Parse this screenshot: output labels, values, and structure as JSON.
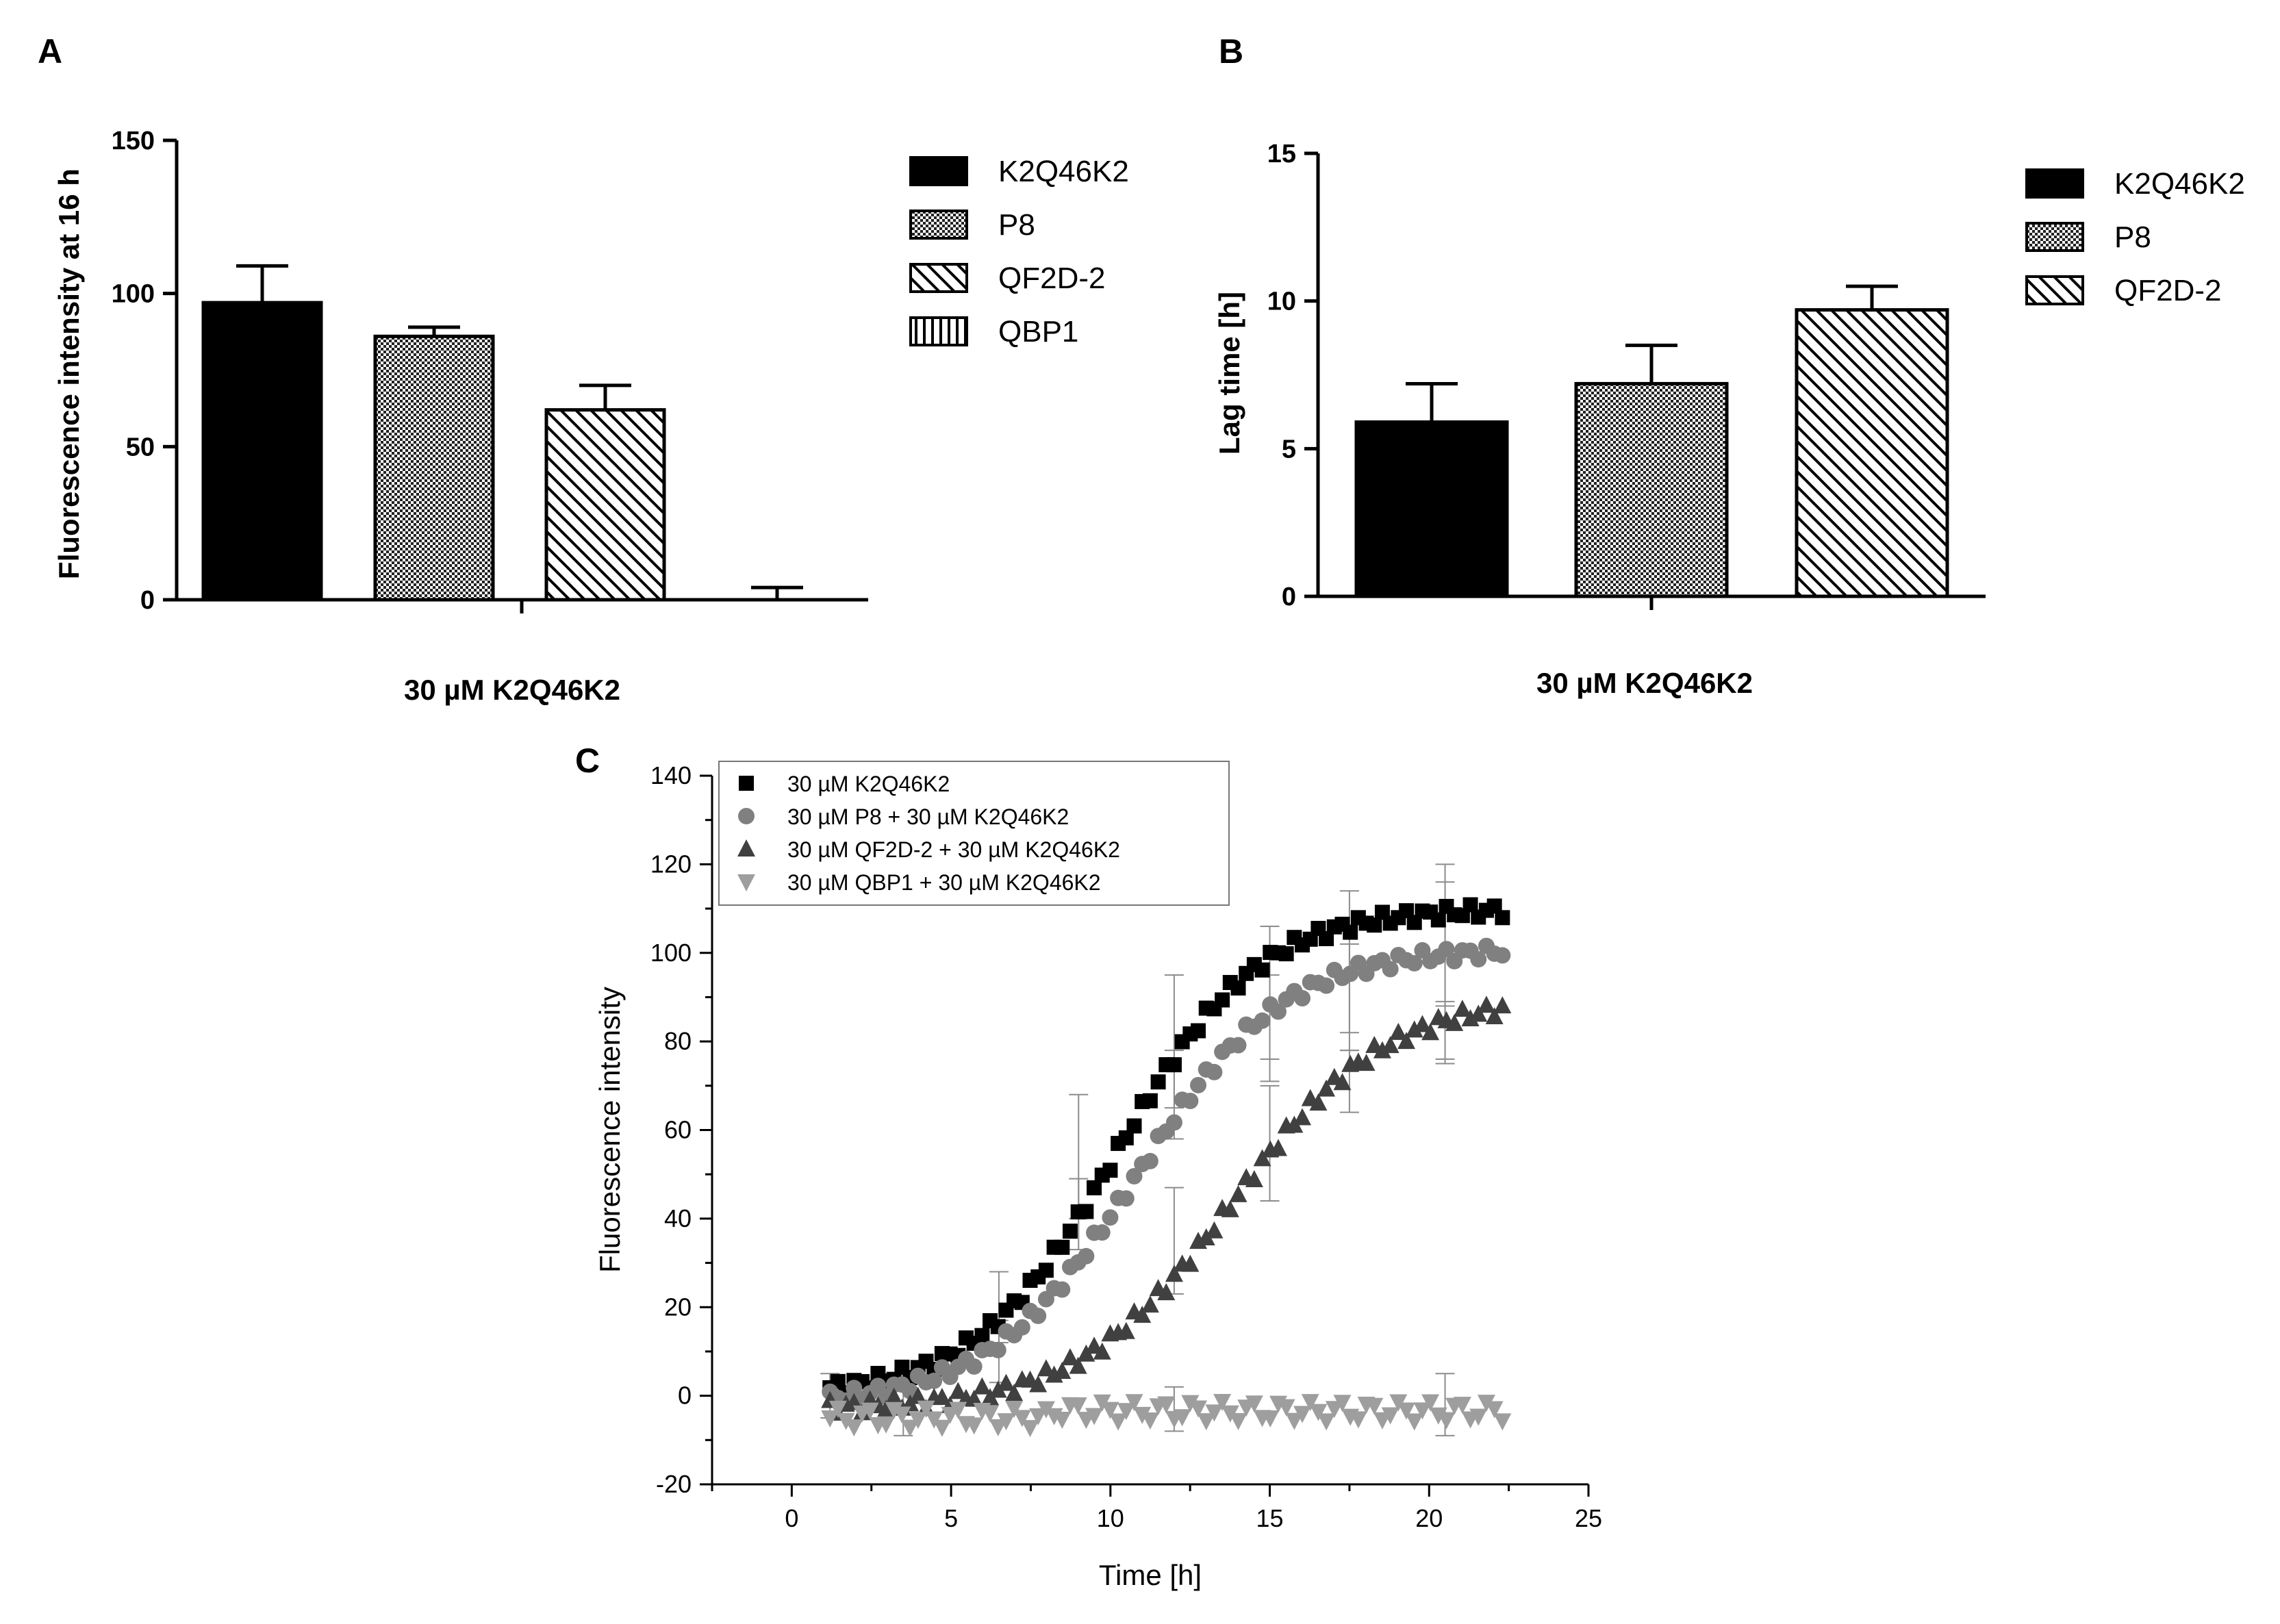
{
  "panels": {
    "a": "A",
    "b": "B",
    "c": "C"
  },
  "chart_data": [
    {
      "type": "bar",
      "panel": "A",
      "ylabel": "Fluorescence intensity at 16 h",
      "xlabel": "30 µM K2Q46K2",
      "ylim": [
        0,
        150
      ],
      "yticks": [
        0,
        50,
        100,
        150
      ],
      "categories": [
        "K2Q46K2",
        "P8",
        "QF2D-2",
        "QBP1"
      ],
      "values": [
        97,
        86,
        62,
        0
      ],
      "errors": [
        12,
        3,
        8,
        4
      ],
      "patterns": [
        "solid",
        "checker",
        "diag",
        "vert"
      ],
      "legend": [
        "K2Q46K2",
        "P8",
        "QF2D-2",
        "QBP1"
      ]
    },
    {
      "type": "bar",
      "panel": "B",
      "ylabel": "Lag time [h]",
      "xlabel": "30 µM K2Q46K2",
      "ylim": [
        0,
        15
      ],
      "yticks": [
        0,
        5,
        10,
        15
      ],
      "categories": [
        "K2Q46K2",
        "P8",
        "QF2D-2"
      ],
      "values": [
        5.9,
        7.2,
        9.7
      ],
      "errors": [
        1.3,
        1.3,
        0.8
      ],
      "patterns": [
        "solid",
        "checker",
        "diag"
      ],
      "legend": [
        "K2Q46K2",
        " P8",
        "QF2D-2"
      ]
    },
    {
      "type": "scatter",
      "panel": "C",
      "xlabel": "Time [h]",
      "ylabel": "Fluorescence intensity",
      "xlim": [
        -2.5,
        25
      ],
      "ylim": [
        -20,
        140
      ],
      "xticks": [
        0,
        5,
        10,
        15,
        20,
        25
      ],
      "yticks": [
        -20,
        0,
        20,
        40,
        60,
        80,
        100,
        120,
        140
      ],
      "series": [
        {
          "name": "30 µM K2Q46K2",
          "marker": "square",
          "color": "#000000",
          "sigmoid": {
            "base": 0,
            "top": 110,
            "mid": 10.2,
            "slope": 2.2
          },
          "error_bars": [
            [
              6.5,
              20,
              8
            ],
            [
              9,
              54,
              14
            ],
            [
              12,
              80,
              15
            ],
            [
              15,
              91,
              15
            ],
            [
              17.5,
              98,
              16
            ],
            [
              20.5,
              104,
              16
            ]
          ]
        },
        {
          "name": "30 µM P8 + 30 µM K2Q46K2",
          "marker": "circle",
          "color": "#808080",
          "sigmoid": {
            "base": -2,
            "top": 101,
            "mid": 10.8,
            "slope": 2.3
          },
          "error_bars": [
            [
              6.5,
              10,
              7
            ],
            [
              9,
              41,
              8
            ],
            [
              12,
              68,
              10
            ],
            [
              15,
              83,
              12
            ],
            [
              17.5,
              90,
              12
            ],
            [
              20.5,
              96,
              20
            ]
          ]
        },
        {
          "name": "30 µM QF2D-2 + 30 µM K2Q46K2",
          "marker": "triangle-up",
          "color": "#404040",
          "sigmoid": {
            "base": -3,
            "top": 90,
            "mid": 13.8,
            "slope": 2.4
          },
          "error_bars": [
            [
              12,
              35,
              12
            ],
            [
              15,
              57,
              13
            ],
            [
              17.5,
              71,
              7
            ],
            [
              20.5,
              82,
              7
            ]
          ]
        },
        {
          "name": "30 µM QBP1 + 30 µM K2Q46K2",
          "marker": "triangle-down",
          "color": "#9e9e9e",
          "flat": -3.5,
          "error_bars": [
            [
              1.2,
              0,
              5
            ],
            [
              3.5,
              -4,
              5
            ],
            [
              12,
              -3,
              5
            ],
            [
              20.5,
              -2,
              7
            ]
          ]
        }
      ],
      "x_start": 1.2,
      "x_end": 22.3,
      "n_points": 85
    }
  ]
}
